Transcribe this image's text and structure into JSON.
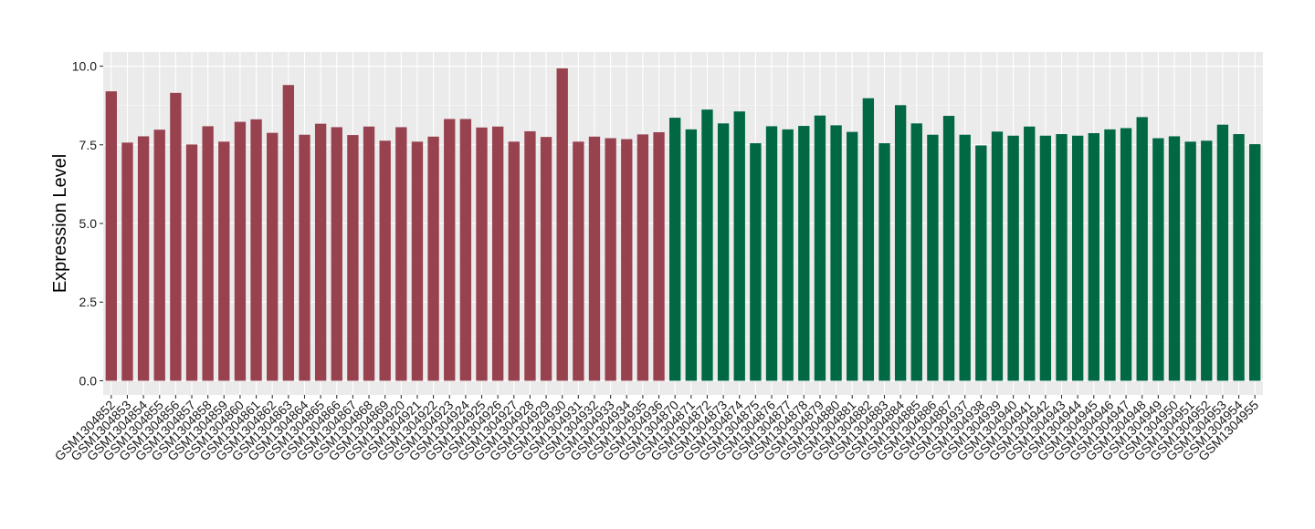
{
  "chart_data": {
    "type": "bar",
    "ylabel": "Expression Level",
    "xlabel": "",
    "ylim": [
      -0.45,
      10.45
    ],
    "yticks": [
      0.0,
      2.5,
      5.0,
      7.5,
      10.0
    ],
    "ytick_labels": [
      "0.0",
      "2.5",
      "5.0",
      "7.5",
      "10.0"
    ],
    "grid": true,
    "background": "#EBEBEB",
    "group_colors": [
      "#98424F",
      "#006843"
    ],
    "categories": [
      "GSM1304852",
      "GSM1304853",
      "GSM1304854",
      "GSM1304855",
      "GSM1304856",
      "GSM1304857",
      "GSM1304858",
      "GSM1304859",
      "GSM1304860",
      "GSM1304861",
      "GSM1304862",
      "GSM1304863",
      "GSM1304864",
      "GSM1304865",
      "GSM1304866",
      "GSM1304867",
      "GSM1304868",
      "GSM1304869",
      "GSM1304920",
      "GSM1304921",
      "GSM1304922",
      "GSM1304923",
      "GSM1304924",
      "GSM1304925",
      "GSM1304926",
      "GSM1304927",
      "GSM1304928",
      "GSM1304929",
      "GSM1304930",
      "GSM1304931",
      "GSM1304932",
      "GSM1304933",
      "GSM1304934",
      "GSM1304935",
      "GSM1304936",
      "GSM1304870",
      "GSM1304871",
      "GSM1304872",
      "GSM1304873",
      "GSM1304874",
      "GSM1304875",
      "GSM1304876",
      "GSM1304877",
      "GSM1304878",
      "GSM1304879",
      "GSM1304880",
      "GSM1304881",
      "GSM1304882",
      "GSM1304883",
      "GSM1304884",
      "GSM1304885",
      "GSM1304886",
      "GSM1304887",
      "GSM1304937",
      "GSM1304938",
      "GSM1304939",
      "GSM1304940",
      "GSM1304941",
      "GSM1304942",
      "GSM1304943",
      "GSM1304944",
      "GSM1304945",
      "GSM1304946",
      "GSM1304947",
      "GSM1304948",
      "GSM1304949",
      "GSM1304950",
      "GSM1304951",
      "GSM1304952",
      "GSM1304953",
      "GSM1304954",
      "GSM1304955"
    ],
    "values": [
      9.2,
      7.57,
      7.77,
      7.98,
      9.15,
      7.51,
      8.09,
      7.6,
      8.23,
      8.31,
      7.88,
      9.4,
      7.82,
      8.17,
      8.06,
      7.81,
      8.08,
      7.63,
      8.06,
      7.6,
      7.76,
      8.32,
      8.32,
      8.05,
      8.08,
      7.6,
      7.93,
      7.75,
      9.93,
      7.6,
      7.76,
      7.71,
      7.68,
      7.83,
      7.9,
      8.36,
      7.99,
      8.62,
      8.18,
      8.56,
      7.55,
      8.09,
      7.99,
      8.1,
      8.43,
      8.12,
      7.91,
      8.98,
      7.55,
      8.76,
      8.18,
      7.82,
      8.42,
      7.82,
      7.48,
      7.92,
      7.79,
      8.08,
      7.79,
      7.84,
      7.79,
      7.87,
      7.99,
      8.03,
      8.38,
      7.71,
      7.77,
      7.6,
      7.63,
      8.14,
      7.84,
      7.52
    ],
    "groups": [
      0,
      0,
      0,
      0,
      0,
      0,
      0,
      0,
      0,
      0,
      0,
      0,
      0,
      0,
      0,
      0,
      0,
      0,
      0,
      0,
      0,
      0,
      0,
      0,
      0,
      0,
      0,
      0,
      0,
      0,
      0,
      0,
      0,
      0,
      0,
      1,
      1,
      1,
      1,
      1,
      1,
      1,
      1,
      1,
      1,
      1,
      1,
      1,
      1,
      1,
      1,
      1,
      1,
      1,
      1,
      1,
      1,
      1,
      1,
      1,
      1,
      1,
      1,
      1,
      1,
      1,
      1,
      1,
      1,
      1,
      1,
      1
    ]
  }
}
